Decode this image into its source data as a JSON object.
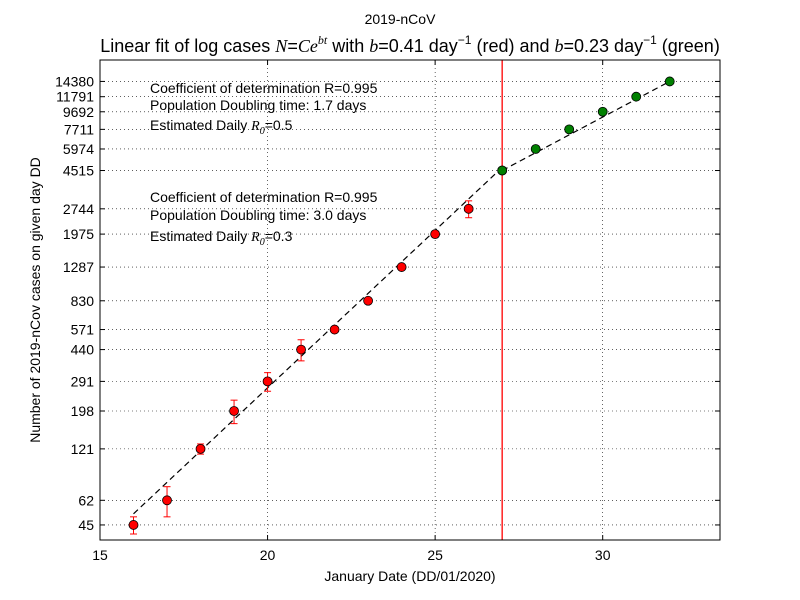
{
  "chart_data": {
    "type": "scatter",
    "title": "2019-nCoV",
    "subtitle": {
      "prefix": "Linear fit of log cases ",
      "formula_N": "N",
      "formula_eq": "=",
      "formula_C": "C",
      "formula_e": "e",
      "formula_exp": "bt",
      "with": " with ",
      "b1_var": "b",
      "b1_eq": "=0.41 day",
      "b1_exp": "−1",
      "b1_color_label": " (red) and ",
      "b2_var": "b",
      "b2_eq": "=0.23 day",
      "b2_exp": "−1",
      "b2_color_label": " (green)"
    },
    "xlabel": "January Date (DD/01/2020)",
    "ylabel": "Number of 2019-nCov cases on given day DD",
    "xlim": [
      15,
      33.5
    ],
    "ylim": [
      37,
      19000
    ],
    "y_scale": "log",
    "grid": true,
    "x_ticks": [
      15,
      20,
      25,
      30
    ],
    "y_ticks": [
      45,
      62,
      121,
      198,
      291,
      440,
      571,
      830,
      1287,
      1975,
      2744,
      4515,
      5974,
      7711,
      9692,
      11791,
      14380
    ],
    "cutoff_x": 27,
    "cutoff_color": "#ff0000",
    "series": [
      {
        "color": "#ff0000",
        "x": [
          16,
          17,
          18,
          19,
          20,
          21,
          22,
          23,
          24,
          25,
          26,
          27
        ],
        "y": [
          45,
          62,
          121,
          198,
          291,
          440,
          571,
          830,
          1287,
          1975,
          2744,
          4515
        ],
        "err": [
          5,
          12,
          8,
          30,
          35,
          60,
          20,
          25,
          20,
          40,
          300,
          150
        ]
      },
      {
        "color": "#008000",
        "x": [
          27,
          28,
          29,
          30,
          31,
          32
        ],
        "y": [
          4515,
          5974,
          7711,
          9692,
          11791,
          14380
        ]
      }
    ],
    "fits": [
      {
        "x": [
          16,
          27
        ],
        "y": [
          52,
          4700
        ]
      },
      {
        "x": [
          27,
          32
        ],
        "y": [
          4515,
          14380
        ]
      }
    ],
    "annotations": [
      {
        "line1": "Coefficient of determination R=0.995",
        "line2": "Population Doubling time: 1.7 days",
        "line3_prefix": "Estimated Daily ",
        "r0_symbol": "R",
        "r0_sub": "0",
        "r0_value": "=0.5"
      },
      {
        "line1": "Coefficient of determination R=0.995",
        "line2": "Population Doubling time: 3.0 days",
        "line3_prefix": "Estimated Daily ",
        "r0_symbol": "R",
        "r0_sub": "0",
        "r0_value": "=0.3"
      }
    ]
  }
}
